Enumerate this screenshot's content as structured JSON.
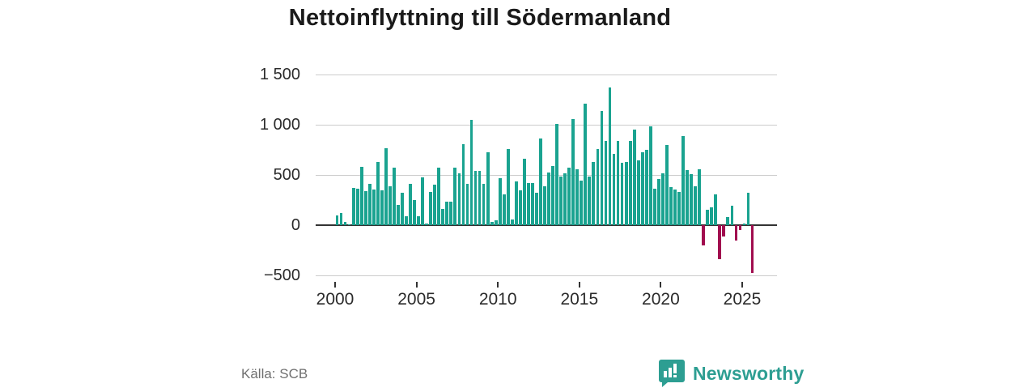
{
  "title": "Nettoinflyttning till Södermanland",
  "footer": {
    "source_label": "Källa: SCB",
    "logo_text": "Newsworthy"
  },
  "colors": {
    "positive_bar": "#1aa390",
    "negative_bar": "#a10d4f",
    "grid": "#cccccc",
    "zero_line": "#333333",
    "logo_teal": "#2d9e92"
  },
  "chart_data": {
    "type": "bar",
    "title": "Nettoinflyttning till Södermanland",
    "xlabel": "",
    "ylabel": "",
    "ylim": [
      -500,
      1500
    ],
    "grid": "horizontal",
    "y_ticks": [
      {
        "value": 1500,
        "label": "1 500"
      },
      {
        "value": 1000,
        "label": "1 000"
      },
      {
        "value": 500,
        "label": "500"
      },
      {
        "value": 0,
        "label": "0"
      },
      {
        "value": -500,
        "label": "−500"
      }
    ],
    "x_ticks": [
      {
        "year": 2000,
        "label": "2000"
      },
      {
        "year": 2005,
        "label": "2005"
      },
      {
        "year": 2010,
        "label": "2010"
      },
      {
        "year": 2015,
        "label": "2015"
      },
      {
        "year": 2020,
        "label": "2020"
      },
      {
        "year": 2025,
        "label": "2025"
      }
    ],
    "frequency": "quarterly",
    "start_year": 2000,
    "start_quarter": 1,
    "values": [
      95,
      125,
      35,
      10,
      375,
      365,
      580,
      340,
      410,
      355,
      630,
      350,
      765,
      390,
      570,
      200,
      320,
      90,
      415,
      250,
      90,
      475,
      15,
      330,
      400,
      575,
      165,
      235,
      235,
      575,
      515,
      805,
      415,
      1045,
      540,
      540,
      415,
      725,
      35,
      50,
      465,
      310,
      760,
      55,
      435,
      350,
      660,
      420,
      420,
      325,
      865,
      390,
      525,
      590,
      1005,
      485,
      515,
      575,
      1060,
      555,
      445,
      1210,
      485,
      630,
      755,
      1135,
      835,
      1370,
      710,
      835,
      620,
      630,
      835,
      950,
      645,
      725,
      750,
      985,
      365,
      460,
      515,
      800,
      380,
      355,
      330,
      885,
      550,
      510,
      390,
      560,
      -205,
      150,
      175,
      310,
      -335,
      -110,
      80,
      195,
      -150,
      -50,
      15,
      325,
      -475
    ]
  }
}
